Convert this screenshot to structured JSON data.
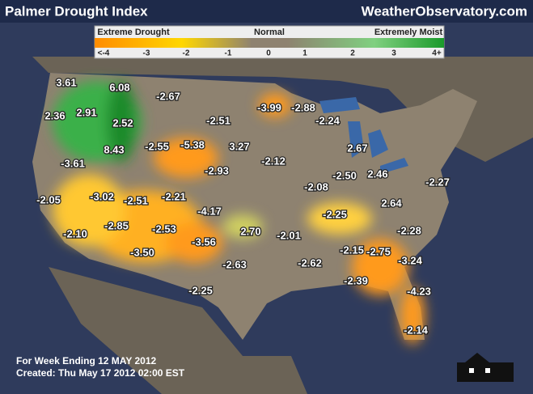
{
  "header": {
    "title": "Palmer Drought Index",
    "site": "WeatherObservatory.com"
  },
  "legend": {
    "labels": [
      "Extreme Drought",
      "Normal",
      "Extremely Moist"
    ],
    "ticks": [
      "<-4",
      "-3",
      "-2",
      "-1",
      "0",
      "1",
      "2",
      "3",
      "4+"
    ]
  },
  "map": {
    "values": [
      "3.61",
      "6.08",
      "-2.67",
      "2.91",
      "2.36",
      "2.52",
      "-2.51",
      "-3.99",
      "-2.88",
      "-2.24",
      "8.43",
      "-2.55",
      "-5.38",
      "3.27",
      "2.67",
      "-3.61",
      "-2.93",
      "-2.12",
      "-2.50",
      "2.46",
      "-2.27",
      "-2.08",
      "-2.05",
      "-3.02",
      "-2.51",
      "-2.21",
      "2.64",
      "-4.17",
      "-2.25",
      "-2.10",
      "-2.85",
      "-2.53",
      "2.70",
      "-2.01",
      "-2.28",
      "-3.56",
      "-2.15",
      "-2.75",
      "-3.50",
      "-3.24",
      "-2.63",
      "-2.62",
      "-2.39",
      "-4.23",
      "-2.25",
      "-2.14"
    ]
  },
  "footer": {
    "week": "For Week Ending 12 MAY 2012",
    "created": "Created: Thu May 17 2012 02:00 EST"
  }
}
